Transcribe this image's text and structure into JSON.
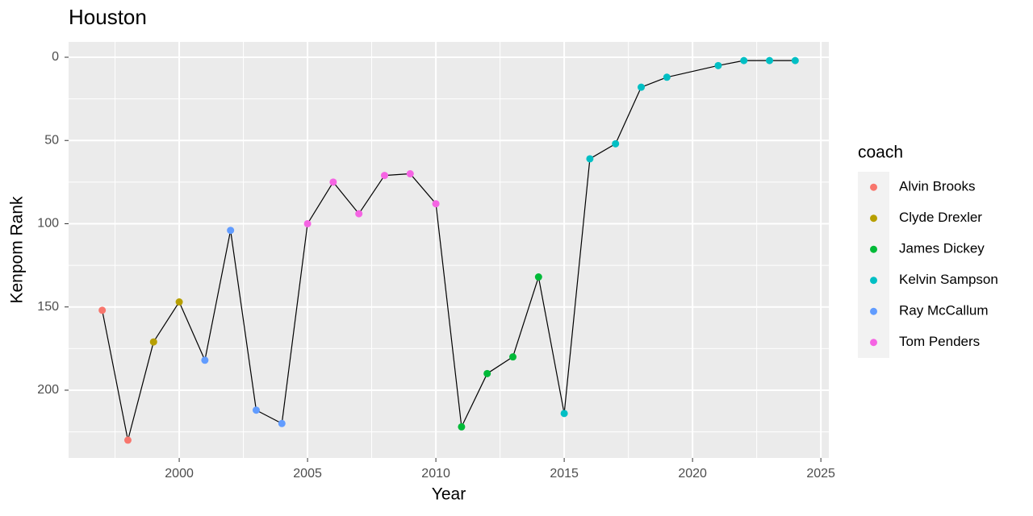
{
  "chart_data": {
    "type": "scatter",
    "title": "Houston",
    "x_label": "Year",
    "y_label": "Kenpom Rank",
    "legend_title": "coach",
    "legend_position": "right",
    "grid": true,
    "y_reversed": true,
    "connect_line_color": "#000000",
    "xlim": [
      1995.69,
      2025.31
    ],
    "xticks": [
      2000,
      2005,
      2010,
      2015,
      2020,
      2025
    ],
    "ylim": [
      -9.2,
      240.7
    ],
    "yticks": [
      0,
      50,
      100,
      150,
      200
    ],
    "series": [
      {
        "name": "Alvin Brooks",
        "color": "#F8766D",
        "x": [
          1997,
          1998
        ],
        "values": [
          152,
          230
        ]
      },
      {
        "name": "Clyde Drexler",
        "color": "#B79F00",
        "x": [
          1999,
          2000
        ],
        "values": [
          171,
          147
        ]
      },
      {
        "name": "James Dickey",
        "color": "#00BA38",
        "x": [
          2011,
          2012,
          2013,
          2014
        ],
        "values": [
          222,
          190,
          180,
          132
        ]
      },
      {
        "name": "Kelvin Sampson",
        "color": "#00BFC4",
        "x": [
          2015,
          2016,
          2017,
          2018,
          2019,
          2021,
          2022,
          2023,
          2024
        ],
        "values": [
          214,
          61,
          52,
          18,
          12,
          5,
          2,
          2,
          2
        ]
      },
      {
        "name": "Ray McCallum",
        "color": "#619CFF",
        "x": [
          2001,
          2002,
          2003,
          2004
        ],
        "values": [
          182,
          104,
          212,
          220
        ]
      },
      {
        "name": "Tom Penders",
        "color": "#F564E3",
        "x": [
          2005,
          2006,
          2007,
          2008,
          2009,
          2010
        ],
        "values": [
          100,
          75,
          94,
          71,
          70,
          88
        ]
      }
    ]
  }
}
